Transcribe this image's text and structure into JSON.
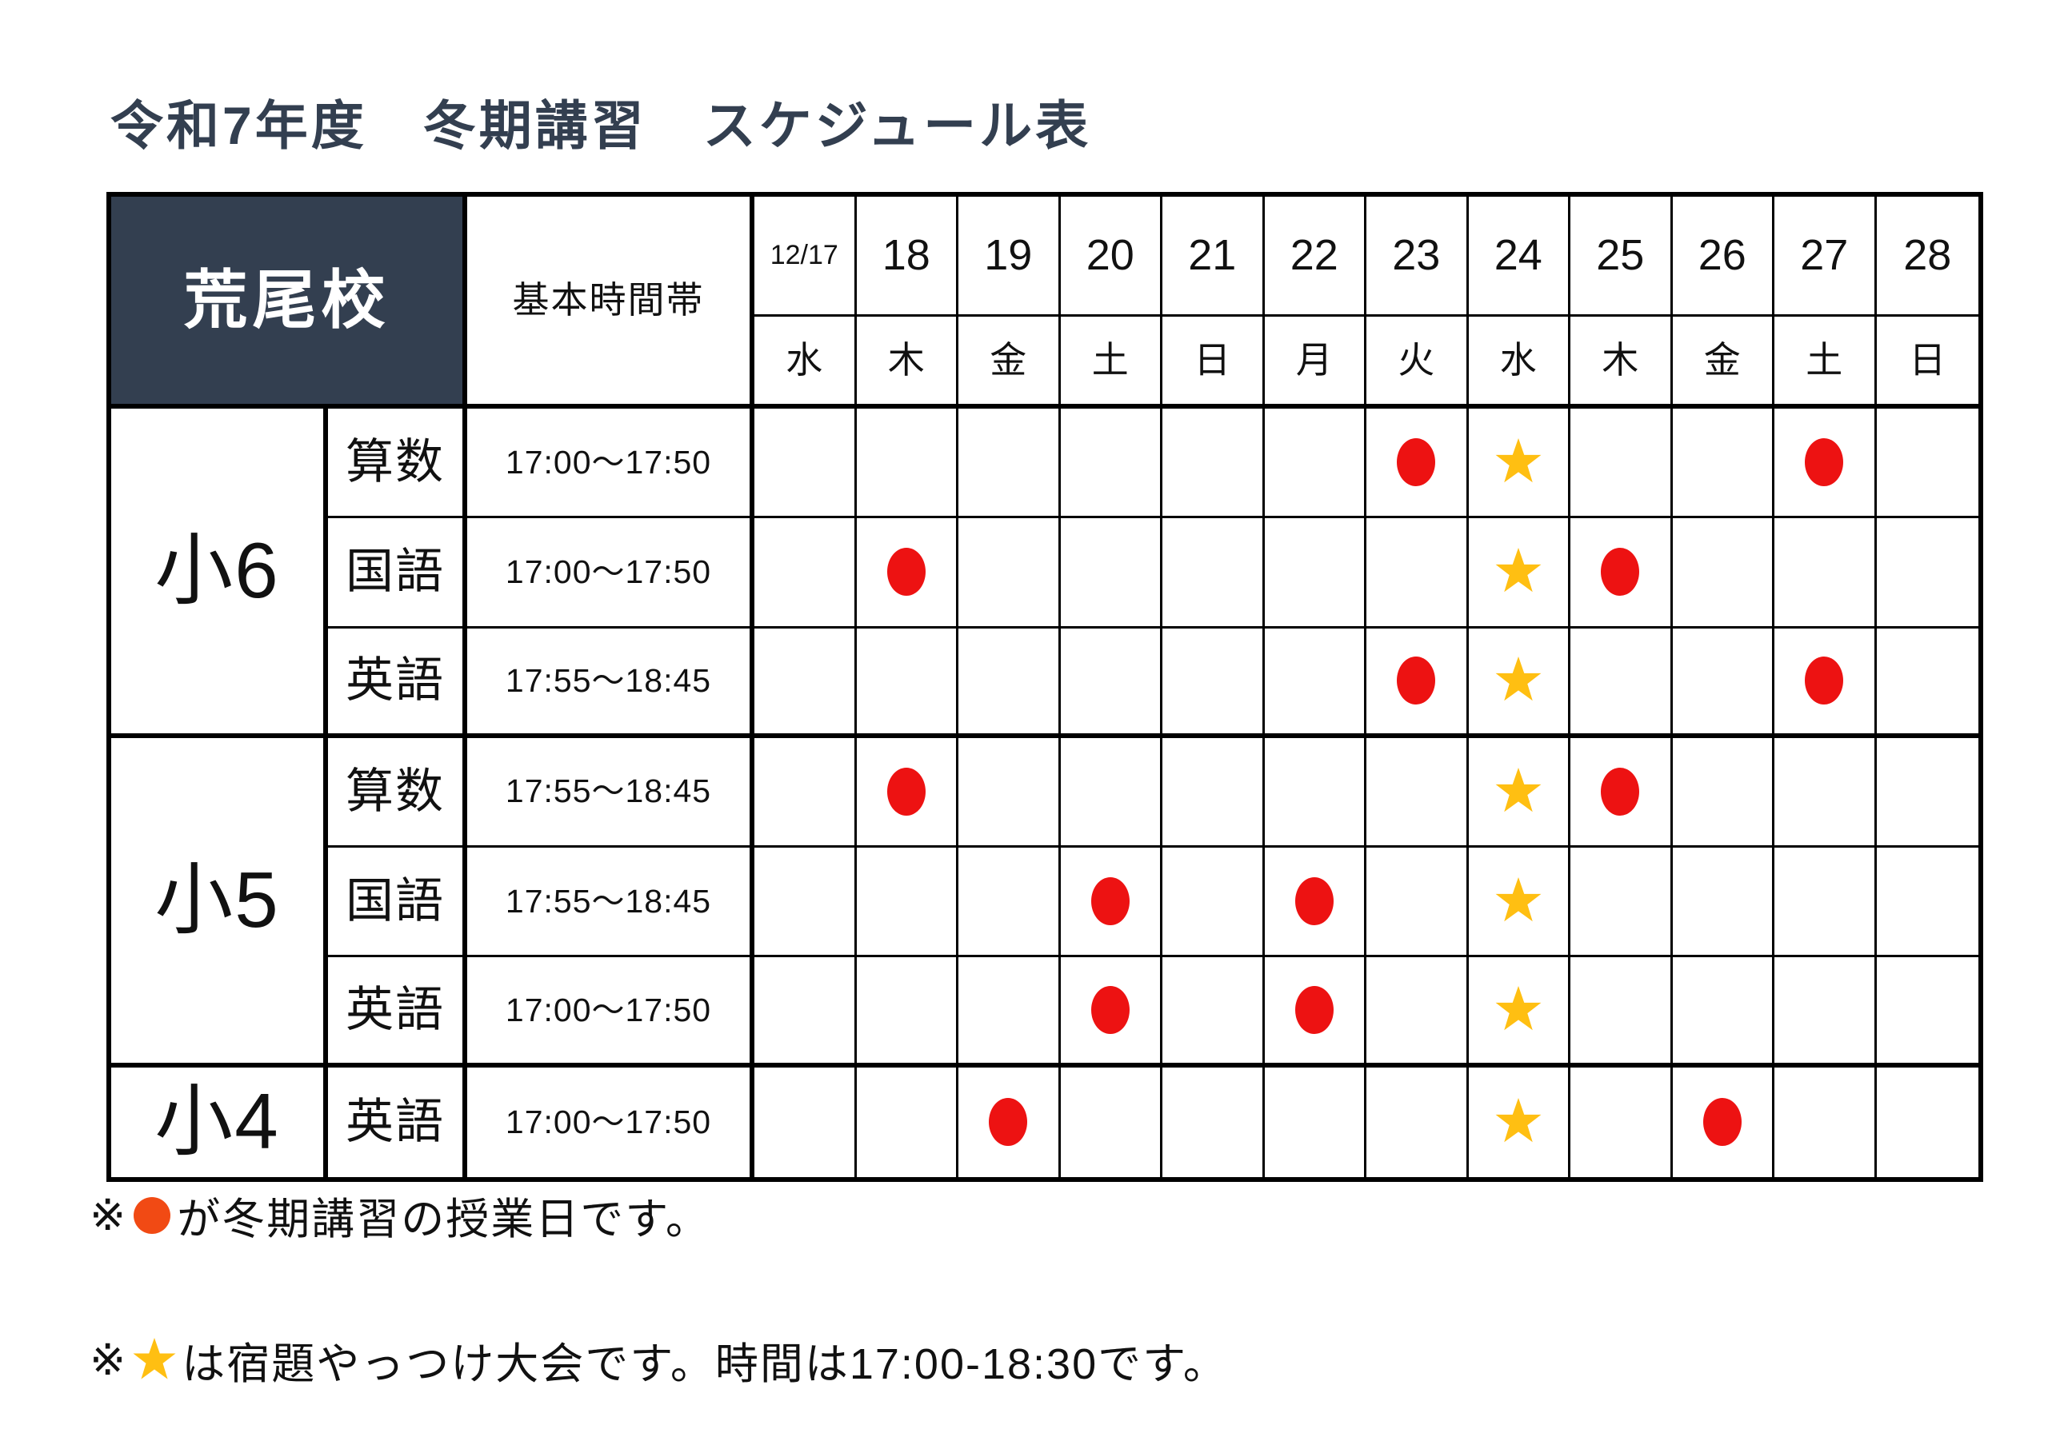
{
  "title": "令和7年度　冬期講習　スケジュール表",
  "colors": {
    "navy": "#333F50",
    "red": "#ED1212",
    "note_red": "#F14A14",
    "gold": "#FFBF12"
  },
  "table": {
    "school": "荒尾校",
    "time_header": "基本時間帯",
    "columns": [
      {
        "date": "12/17",
        "day": "水"
      },
      {
        "date": "18",
        "day": "木"
      },
      {
        "date": "19",
        "day": "金"
      },
      {
        "date": "20",
        "day": "土"
      },
      {
        "date": "21",
        "day": "日"
      },
      {
        "date": "22",
        "day": "月"
      },
      {
        "date": "23",
        "day": "火"
      },
      {
        "date": "24",
        "day": "水"
      },
      {
        "date": "25",
        "day": "木"
      },
      {
        "date": "26",
        "day": "金"
      },
      {
        "date": "27",
        "day": "土"
      },
      {
        "date": "28",
        "day": "日"
      }
    ],
    "groups": [
      {
        "grade": "小6",
        "rows": [
          {
            "subject": "算数",
            "time": "17:00〜17:50",
            "marks": [
              "",
              "",
              "",
              "",
              "",
              "",
              "circle",
              "star",
              "",
              "",
              "circle",
              ""
            ]
          },
          {
            "subject": "国語",
            "time": "17:00〜17:50",
            "marks": [
              "",
              "circle",
              "",
              "",
              "",
              "",
              "",
              "star",
              "circle",
              "",
              "",
              ""
            ]
          },
          {
            "subject": "英語",
            "time": "17:55〜18:45",
            "marks": [
              "",
              "",
              "",
              "",
              "",
              "",
              "circle",
              "star",
              "",
              "",
              "circle",
              ""
            ]
          }
        ]
      },
      {
        "grade": "小5",
        "rows": [
          {
            "subject": "算数",
            "time": "17:55〜18:45",
            "marks": [
              "",
              "circle",
              "",
              "",
              "",
              "",
              "",
              "star",
              "circle",
              "",
              "",
              ""
            ]
          },
          {
            "subject": "国語",
            "time": "17:55〜18:45",
            "marks": [
              "",
              "",
              "",
              "circle",
              "",
              "circle",
              "",
              "star",
              "",
              "",
              "",
              ""
            ]
          },
          {
            "subject": "英語",
            "time": "17:00〜17:50",
            "marks": [
              "",
              "",
              "",
              "circle",
              "",
              "circle",
              "",
              "star",
              "",
              "",
              "",
              ""
            ]
          }
        ]
      },
      {
        "grade": "小4",
        "rows": [
          {
            "subject": "英語",
            "time": "17:00〜17:50",
            "marks": [
              "",
              "",
              "circle",
              "",
              "",
              "",
              "",
              "star",
              "",
              "circle",
              "",
              ""
            ]
          }
        ]
      }
    ]
  },
  "legend": {
    "circle_meaning": "冬期講習の授業日",
    "star_meaning": "宿題やっつけ大会",
    "star_time": "17:00-18:30"
  },
  "notes": [
    {
      "prefix": "※",
      "marker": "circle",
      "text": "が冬期講習の授業日です。"
    },
    {
      "prefix": "※",
      "marker": "star",
      "text": "は宿題やっつけ大会です。時間は17:00-18:30です。"
    }
  ]
}
